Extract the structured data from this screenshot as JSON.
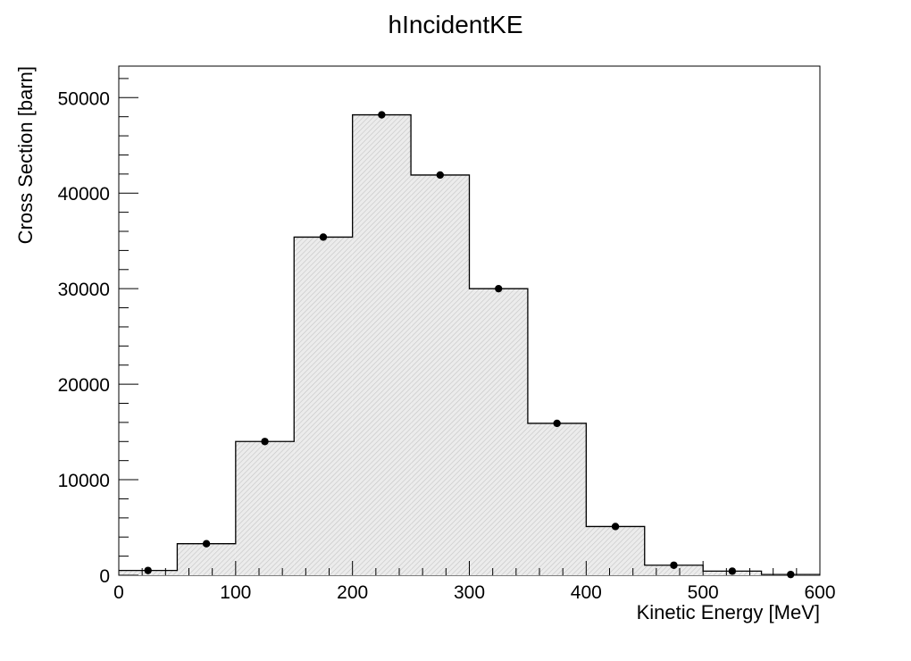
{
  "chart_data": {
    "type": "bar",
    "title": "hIncidentKE",
    "xlabel": "Kinetic Energy [MeV]",
    "ylabel": "Cross Section [barn]",
    "xlim": [
      0,
      600
    ],
    "ylim": [
      0,
      53300
    ],
    "x_ticks": [
      0,
      100,
      200,
      300,
      400,
      500,
      600
    ],
    "y_ticks": [
      0,
      10000,
      20000,
      30000,
      40000,
      50000
    ],
    "grid": false,
    "legend": "none",
    "bin_width": 50,
    "bin_centers": [
      25,
      75,
      125,
      175,
      225,
      275,
      325,
      375,
      425,
      475,
      525,
      575
    ],
    "values": [
      500,
      3300,
      14000,
      35400,
      48200,
      41900,
      30000,
      15900,
      5100,
      1050,
      430,
      80
    ],
    "colors": {
      "fill": "#e9e9e9",
      "hatch": "#bdbdbd",
      "line": "#000000",
      "marker": "#000000"
    }
  }
}
